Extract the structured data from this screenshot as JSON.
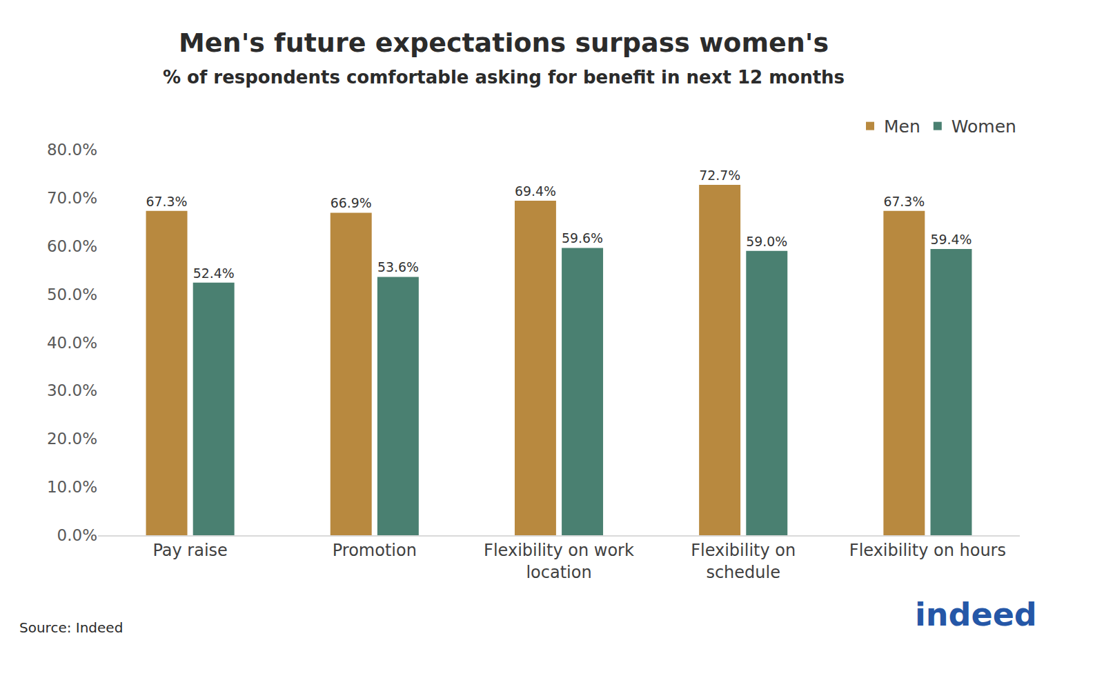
{
  "chart_data": {
    "type": "bar",
    "title": "Men's future expectations surpass women's",
    "subtitle": "% of respondents comfortable asking for benefit in next 12 months",
    "source": "Source: Indeed",
    "logo": "indeed",
    "categories": [
      "Pay raise",
      "Promotion",
      "Flexibility on work location",
      "Flexibility on schedule",
      "Flexibility on hours"
    ],
    "series": [
      {
        "name": "Men",
        "color": "#b8893f",
        "values": [
          67.3,
          66.9,
          69.4,
          72.7,
          67.3
        ],
        "value_labels": [
          "67.3%",
          "66.9%",
          "69.4%",
          "72.7%",
          "67.3%"
        ]
      },
      {
        "name": "Women",
        "color": "#4a8071",
        "values": [
          52.4,
          53.6,
          59.6,
          59.0,
          59.4
        ],
        "value_labels": [
          "52.4%",
          "53.6%",
          "59.6%",
          "59.0%",
          "59.4%"
        ]
      }
    ],
    "ylim": [
      0,
      80
    ],
    "yticks": [
      {
        "value": 0,
        "label": "0.0%"
      },
      {
        "value": 10,
        "label": "10.0%"
      },
      {
        "value": 20,
        "label": "20.0%"
      },
      {
        "value": 30,
        "label": "30.0%"
      },
      {
        "value": 40,
        "label": "40.0%"
      },
      {
        "value": 50,
        "label": "50.0%"
      },
      {
        "value": 60,
        "label": "60.0%"
      },
      {
        "value": 70,
        "label": "70.0%"
      },
      {
        "value": 80,
        "label": "80.0%"
      }
    ],
    "grid": false,
    "legend": "top-right",
    "data_labels": true
  }
}
